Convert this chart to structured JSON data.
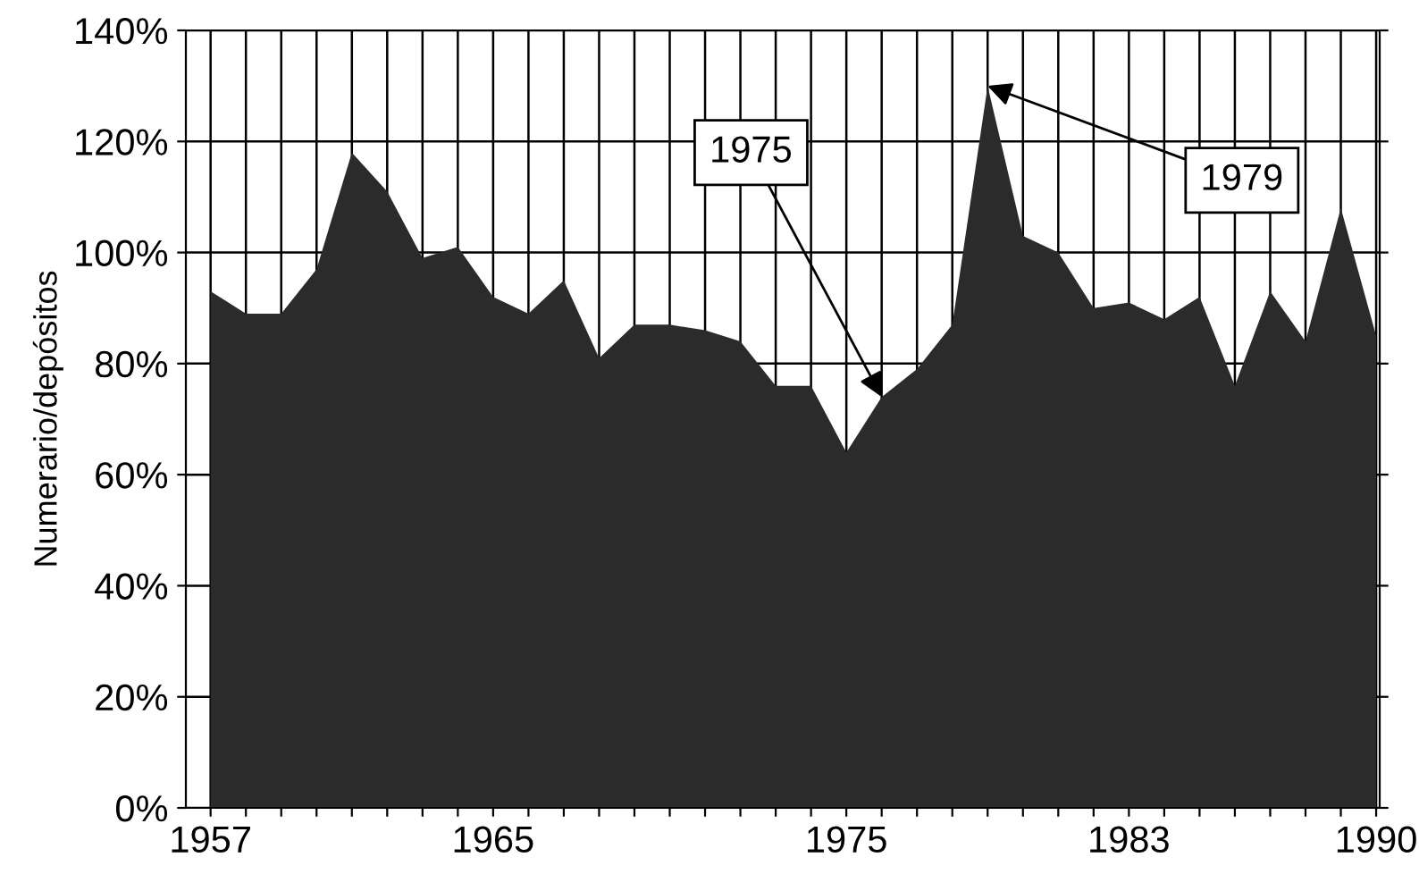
{
  "chart_data": {
    "type": "area",
    "ylabel": "Numerario/depósitos",
    "x": [
      1957,
      1958,
      1959,
      1960,
      1961,
      1962,
      1963,
      1964,
      1965,
      1966,
      1967,
      1968,
      1969,
      1970,
      1971,
      1972,
      1973,
      1974,
      1975,
      1976,
      1977,
      1978,
      1979,
      1980,
      1981,
      1982,
      1983,
      1984,
      1985,
      1986,
      1987,
      1988,
      1989,
      1990
    ],
    "series": [
      {
        "color": "#2b2b2b",
        "values": [
          93,
          89,
          89,
          97,
          118,
          111,
          99,
          101,
          92,
          89,
          95,
          81,
          87,
          87,
          86,
          84,
          76,
          76,
          64,
          74,
          79,
          87,
          130,
          103,
          100,
          90,
          91,
          88,
          92,
          76,
          93,
          84,
          108,
          85
        ]
      }
    ],
    "xlim": [
      1956.3,
      1990.1
    ],
    "ylim": [
      0,
      140
    ],
    "xticks": [
      {
        "value": 1957,
        "label": "1957"
      },
      {
        "value": 1958,
        "label": null
      },
      {
        "value": 1959,
        "label": null
      },
      {
        "value": 1960,
        "label": null
      },
      {
        "value": 1961,
        "label": null
      },
      {
        "value": 1962,
        "label": null
      },
      {
        "value": 1963,
        "label": null
      },
      {
        "value": 1964,
        "label": null
      },
      {
        "value": 1965,
        "label": "1965"
      },
      {
        "value": 1966,
        "label": null
      },
      {
        "value": 1967,
        "label": null
      },
      {
        "value": 1968,
        "label": null
      },
      {
        "value": 1969,
        "label": null
      },
      {
        "value": 1970,
        "label": null
      },
      {
        "value": 1971,
        "label": null
      },
      {
        "value": 1972,
        "label": null
      },
      {
        "value": 1973,
        "label": null
      },
      {
        "value": 1974,
        "label": null
      },
      {
        "value": 1975,
        "label": "1975"
      },
      {
        "value": 1976,
        "label": null
      },
      {
        "value": 1977,
        "label": null
      },
      {
        "value": 1978,
        "label": null
      },
      {
        "value": 1979,
        "label": null
      },
      {
        "value": 1980,
        "label": null
      },
      {
        "value": 1981,
        "label": null
      },
      {
        "value": 1982,
        "label": null
      },
      {
        "value": 1983,
        "label": "1983"
      },
      {
        "value": 1984,
        "label": null
      },
      {
        "value": 1985,
        "label": null
      },
      {
        "value": 1986,
        "label": null
      },
      {
        "value": 1987,
        "label": null
      },
      {
        "value": 1988,
        "label": null
      },
      {
        "value": 1989,
        "label": null
      },
      {
        "value": 1990,
        "label": "1990"
      }
    ],
    "yticks": [
      {
        "value": 0,
        "label": "0%"
      },
      {
        "value": 20,
        "label": "20%"
      },
      {
        "value": 40,
        "label": "40%"
      },
      {
        "value": 60,
        "label": "60%"
      },
      {
        "value": 80,
        "label": "80%"
      },
      {
        "value": 100,
        "label": "100%"
      },
      {
        "value": 120,
        "label": "120%"
      },
      {
        "value": 140,
        "label": "140%"
      }
    ],
    "grid": true,
    "annotations": [
      {
        "text": "1975",
        "x": 1976,
        "y": 74
      },
      {
        "text": "1979",
        "x": 1979,
        "y": 130
      }
    ]
  }
}
